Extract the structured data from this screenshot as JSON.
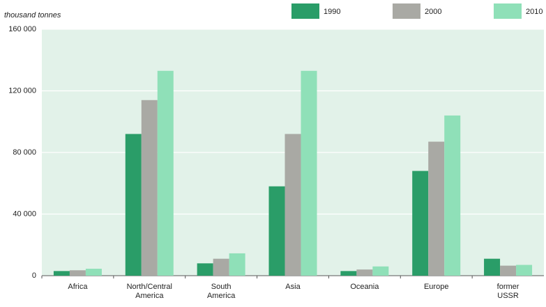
{
  "chart_data": {
    "type": "bar",
    "y_label": "thousand tonnes",
    "categories": [
      "Africa",
      "North/Central America",
      "South America",
      "Asia",
      "Oceania",
      "Europe",
      "former USSR"
    ],
    "series": [
      {
        "name": "1990",
        "color": "#2a9d68",
        "values": [
          3000,
          92000,
          8000,
          58000,
          3000,
          68000,
          11000
        ]
      },
      {
        "name": "2000",
        "color": "#a9a9a4",
        "values": [
          3500,
          114000,
          11000,
          92000,
          4000,
          87000,
          6500
        ]
      },
      {
        "name": "2010",
        "color": "#8fe0b8",
        "values": [
          4500,
          133000,
          14500,
          133000,
          6000,
          104000,
          7000
        ]
      }
    ],
    "ylim": [
      0,
      160000
    ],
    "yticks": [
      0,
      {
        "value": 40000,
        "label": "40 000"
      },
      {
        "value": 80000,
        "label": "80 000"
      },
      {
        "value": 120000,
        "label": "120 000"
      },
      {
        "value": 160000,
        "label": "160 000"
      }
    ],
    "grid": true
  }
}
